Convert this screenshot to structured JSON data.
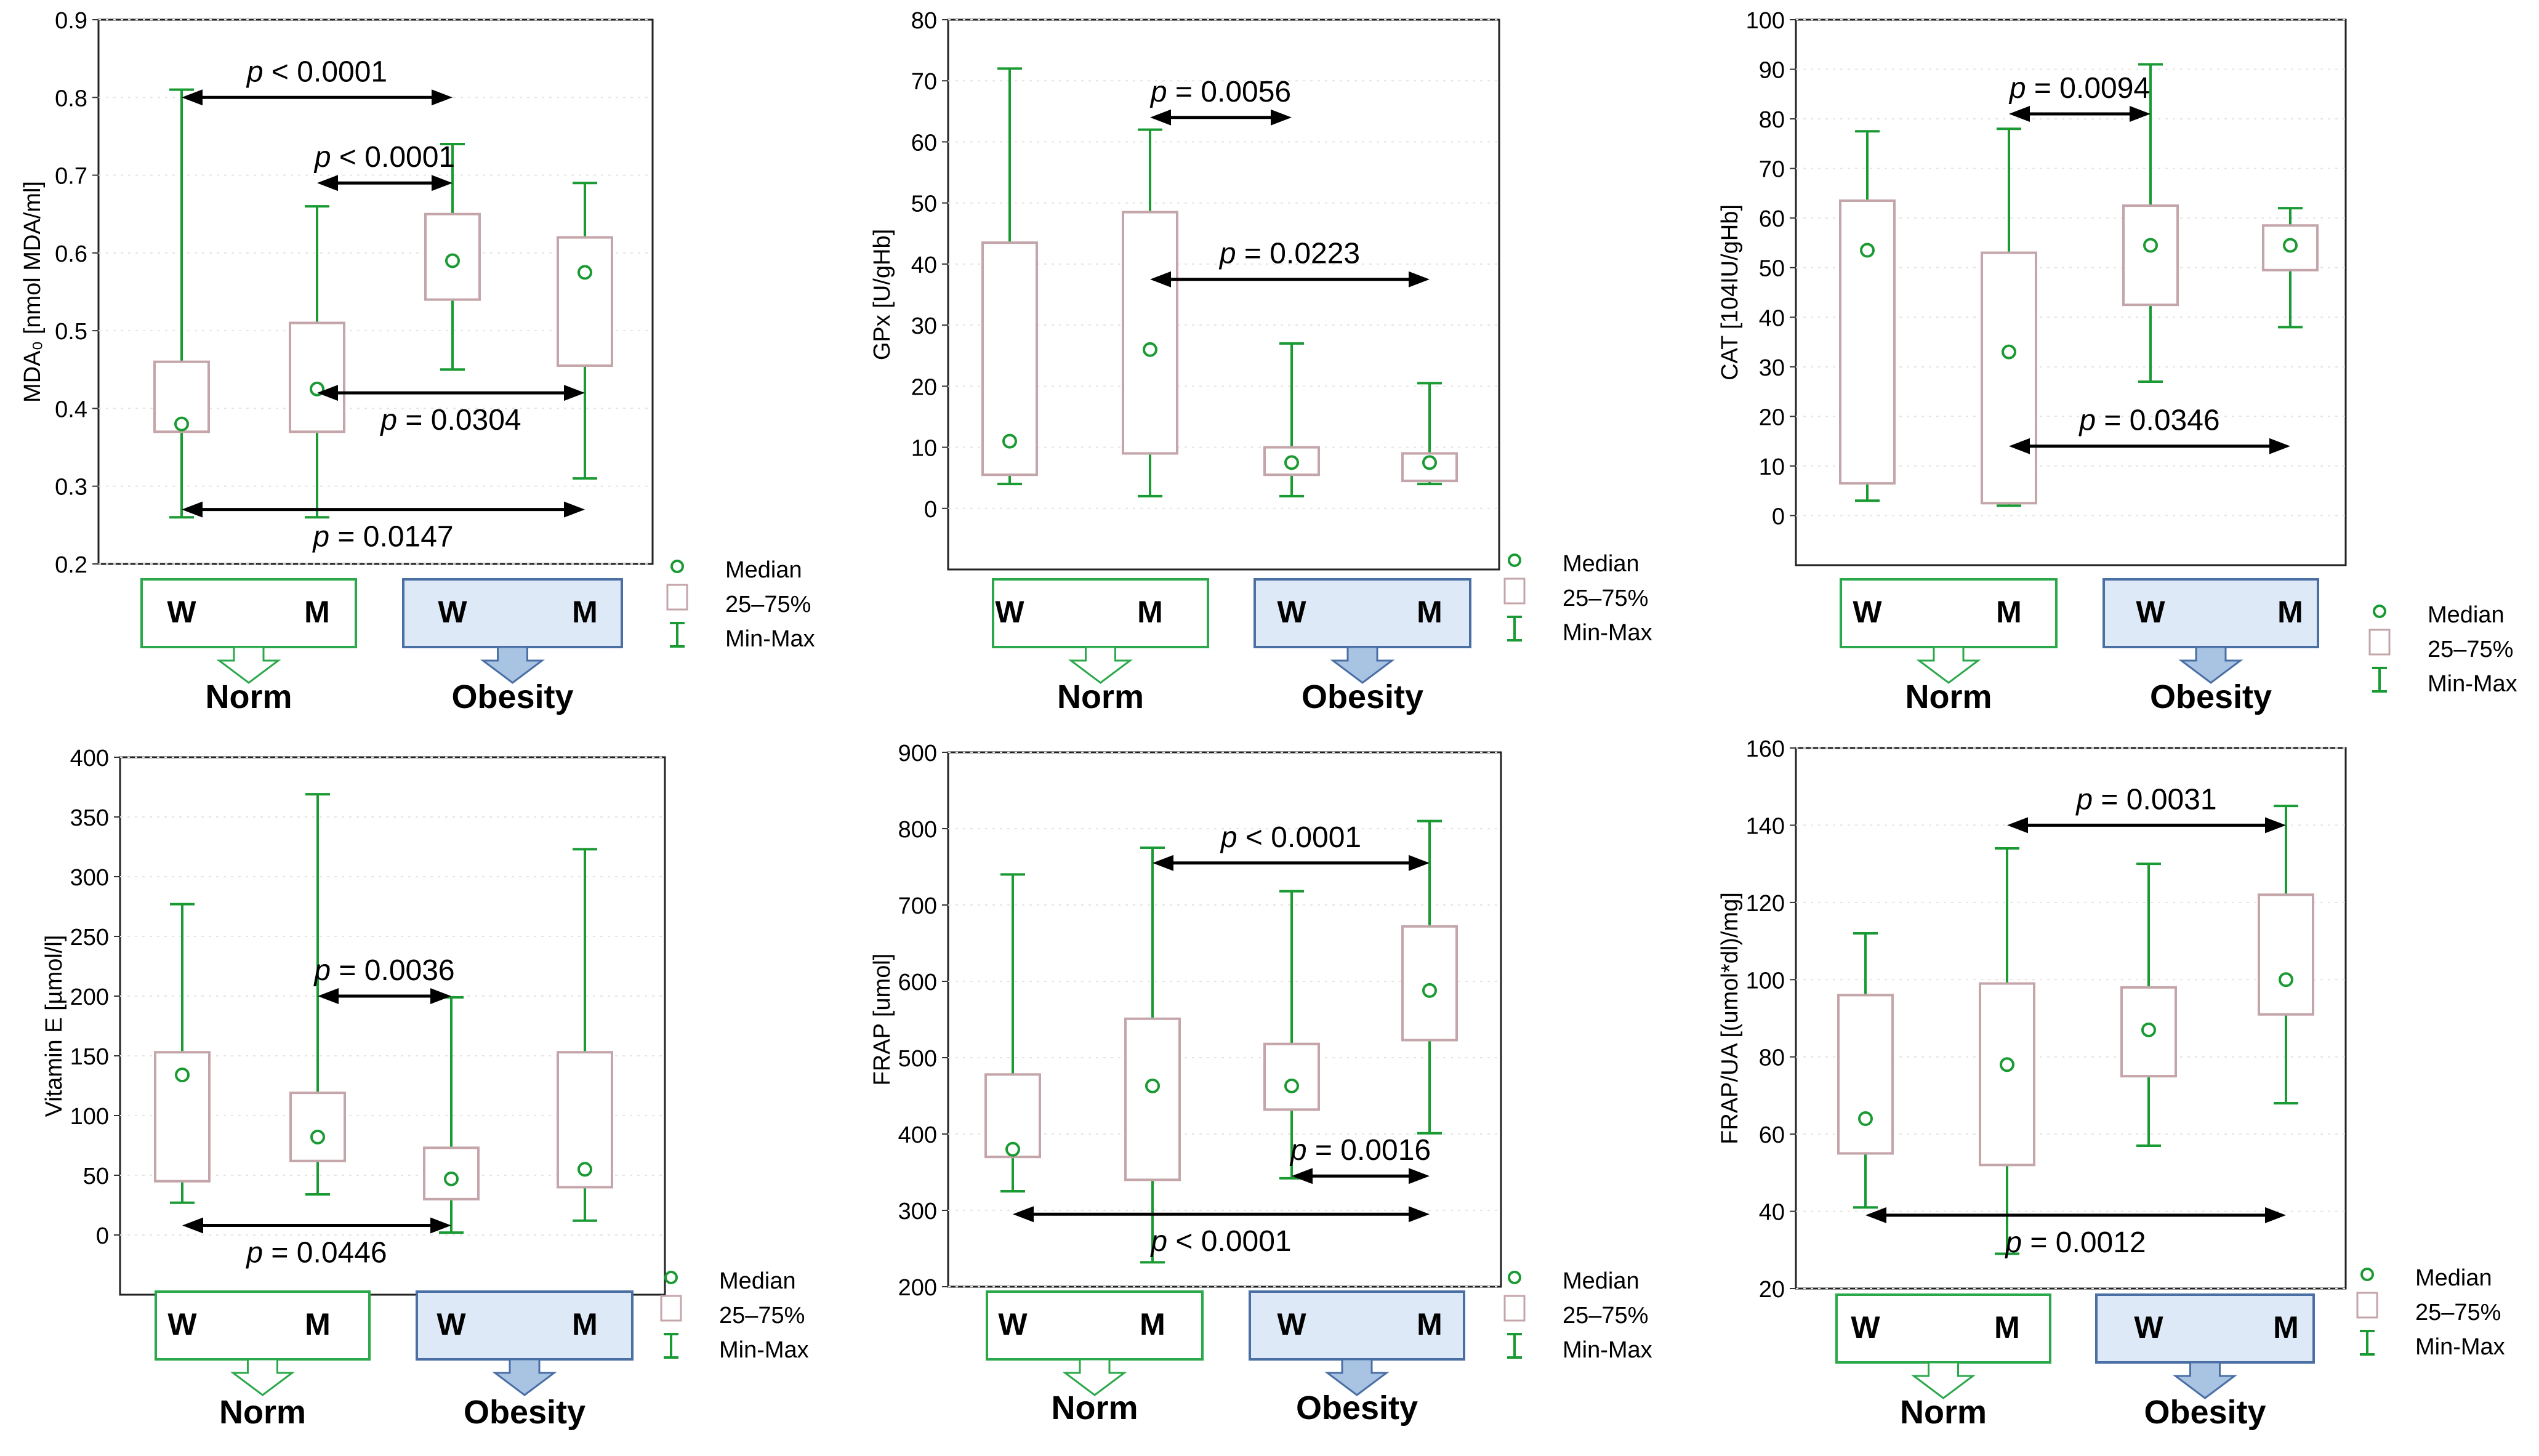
{
  "legend": {
    "median": "Median",
    "iqr": "25–75%",
    "range": "Min-Max"
  },
  "group_labels": {
    "women": "W",
    "men": "M",
    "norm": "Norm",
    "obesity": "Obesity"
  },
  "colors": {
    "whisker": "#1a9a33",
    "box": "#c4a5aa",
    "arrow": "#000000",
    "panel_border": "#222222",
    "norm_box": "#2aa84a",
    "obesity_fill": "#dde9f6",
    "obesity_border": "#4a6fa5"
  },
  "chart_data": [
    {
      "type": "boxplot",
      "ylabel": "MDA₀ [nmol MDA/ml]",
      "ylim": [
        0.2,
        0.9
      ],
      "yticks": [
        "0.2",
        "0.3",
        "0.4",
        "0.5",
        "0.6",
        "0.7",
        "0.8",
        "0.9"
      ],
      "categories": [
        "Norm W",
        "Norm M",
        "Obesity W",
        "Obesity M"
      ],
      "boxes": [
        {
          "min": 0.26,
          "q1": 0.37,
          "median": 0.38,
          "q3": 0.46,
          "max": 0.81
        },
        {
          "min": 0.26,
          "q1": 0.37,
          "median": 0.425,
          "q3": 0.51,
          "max": 0.66
        },
        {
          "min": 0.45,
          "q1": 0.54,
          "median": 0.59,
          "q3": 0.65,
          "max": 0.74
        },
        {
          "min": 0.31,
          "q1": 0.455,
          "median": 0.575,
          "q3": 0.62,
          "max": 0.69
        }
      ],
      "comparisons": [
        {
          "from": 0,
          "to": 2,
          "y": 0.8,
          "label": "p < 0.0001",
          "label_side": "above"
        },
        {
          "from": 1,
          "to": 2,
          "y": 0.69,
          "label": "p < 0.0001",
          "label_side": "above"
        },
        {
          "from": 1,
          "to": 3,
          "y": 0.42,
          "label": "p = 0.0304",
          "label_side": "below"
        },
        {
          "from": 0,
          "to": 3,
          "y": 0.27,
          "label": "p = 0.0147",
          "label_side": "below"
        }
      ]
    },
    {
      "type": "boxplot",
      "ylabel": "GPx [U/gHb]",
      "ylim": [
        -10,
        80
      ],
      "yticks": [
        "0",
        "10",
        "20",
        "30",
        "40",
        "50",
        "60",
        "70",
        "80"
      ],
      "categories": [
        "Norm W",
        "Norm M",
        "Obesity W",
        "Obesity M"
      ],
      "boxes": [
        {
          "min": 4,
          "q1": 5.5,
          "median": 11,
          "q3": 43.5,
          "max": 72
        },
        {
          "min": 2,
          "q1": 9,
          "median": 26,
          "q3": 48.5,
          "max": 62
        },
        {
          "min": 2,
          "q1": 5.5,
          "median": 7.5,
          "q3": 10,
          "max": 27
        },
        {
          "min": 4,
          "q1": 4.5,
          "median": 7.5,
          "q3": 9,
          "max": 20.5
        }
      ],
      "comparisons": [
        {
          "from": 1,
          "to": 2,
          "y": 64,
          "label": "p = 0.0056",
          "label_side": "above"
        },
        {
          "from": 1,
          "to": 3,
          "y": 37.5,
          "label": "p = 0.0223",
          "label_side": "above"
        }
      ]
    },
    {
      "type": "boxplot",
      "ylabel": "CAT [104IU/gHb]",
      "ylim": [
        -10,
        100
      ],
      "yticks": [
        "0",
        "10",
        "20",
        "30",
        "40",
        "50",
        "60",
        "70",
        "80",
        "90",
        "100"
      ],
      "categories": [
        "Norm W",
        "Norm M",
        "Obesity W",
        "Obesity M"
      ],
      "boxes": [
        {
          "min": 3,
          "q1": 6.5,
          "median": 53.5,
          "q3": 63.5,
          "max": 77.5
        },
        {
          "min": 2,
          "q1": 2.5,
          "median": 33,
          "q3": 53,
          "max": 78
        },
        {
          "min": 27,
          "q1": 42.5,
          "median": 54.5,
          "q3": 62.5,
          "max": 91
        },
        {
          "min": 38,
          "q1": 49.5,
          "median": 54.5,
          "q3": 58.5,
          "max": 62
        }
      ],
      "comparisons": [
        {
          "from": 1,
          "to": 2,
          "y": 81,
          "label": "p = 0.0094",
          "label_side": "above"
        },
        {
          "from": 1,
          "to": 3,
          "y": 14,
          "label": "p = 0.0346",
          "label_side": "above"
        }
      ]
    },
    {
      "type": "boxplot",
      "ylabel": "Vitamin E [µmol/l]",
      "ylim": [
        -50,
        400
      ],
      "yticks": [
        "0",
        "50",
        "100",
        "150",
        "200",
        "250",
        "300",
        "350",
        "400"
      ],
      "categories": [
        "Norm W",
        "Norm M",
        "Obesity W",
        "Obesity M"
      ],
      "boxes": [
        {
          "min": 27,
          "q1": 45,
          "median": 134,
          "q3": 153,
          "max": 277
        },
        {
          "min": 34,
          "q1": 62,
          "median": 82,
          "q3": 119,
          "max": 369
        },
        {
          "min": 2,
          "q1": 30,
          "median": 47,
          "q3": 73,
          "max": 199
        },
        {
          "min": 12,
          "q1": 40,
          "median": 55,
          "q3": 153,
          "max": 323
        }
      ],
      "comparisons": [
        {
          "from": 1,
          "to": 2,
          "y": 200,
          "label": "p = 0.0036",
          "label_side": "above"
        },
        {
          "from": 0,
          "to": 2,
          "y": 8,
          "label": "p = 0.0446",
          "label_side": "below"
        }
      ]
    },
    {
      "type": "boxplot",
      "ylabel": "FRAP [umol]",
      "ylim": [
        200,
        900
      ],
      "yticks": [
        "200",
        "300",
        "400",
        "500",
        "600",
        "700",
        "800",
        "900"
      ],
      "categories": [
        "Norm W",
        "Norm M",
        "Obesity W",
        "Obesity M"
      ],
      "boxes": [
        {
          "min": 325,
          "q1": 370,
          "median": 380,
          "q3": 478,
          "max": 740
        },
        {
          "min": 232,
          "q1": 340,
          "median": 463,
          "q3": 551,
          "max": 775
        },
        {
          "min": 342,
          "q1": 432,
          "median": 463,
          "q3": 518,
          "max": 718
        },
        {
          "min": 401,
          "q1": 523,
          "median": 588,
          "q3": 672,
          "max": 810
        }
      ],
      "comparisons": [
        {
          "from": 1,
          "to": 3,
          "y": 755,
          "label": "p < 0.0001",
          "label_side": "above"
        },
        {
          "from": 2,
          "to": 3,
          "y": 345,
          "label": "p = 0.0016",
          "label_side": "above"
        },
        {
          "from": 0,
          "to": 3,
          "y": 295,
          "label": "p < 0.0001",
          "label_side": "below"
        }
      ]
    },
    {
      "type": "boxplot",
      "ylabel": "FRAP/UA [(umol*dl)/mg]",
      "ylim": [
        20,
        160
      ],
      "yticks": [
        "20",
        "40",
        "60",
        "80",
        "100",
        "120",
        "140",
        "160"
      ],
      "categories": [
        "Norm W",
        "Norm M",
        "Obesity W",
        "Obesity M"
      ],
      "boxes": [
        {
          "min": 41,
          "q1": 55,
          "median": 64,
          "q3": 96,
          "max": 112
        },
        {
          "min": 29,
          "q1": 52,
          "median": 78,
          "q3": 99,
          "max": 134
        },
        {
          "min": 57,
          "q1": 75,
          "median": 87,
          "q3": 98,
          "max": 130
        },
        {
          "min": 68,
          "q1": 91,
          "median": 100,
          "q3": 122,
          "max": 145
        }
      ],
      "comparisons": [
        {
          "from": 1,
          "to": 3,
          "y": 140,
          "label": "p = 0.0031",
          "label_side": "above"
        },
        {
          "from": 0,
          "to": 3,
          "y": 39,
          "label": "p = 0.0012",
          "label_side": "below"
        }
      ]
    }
  ]
}
